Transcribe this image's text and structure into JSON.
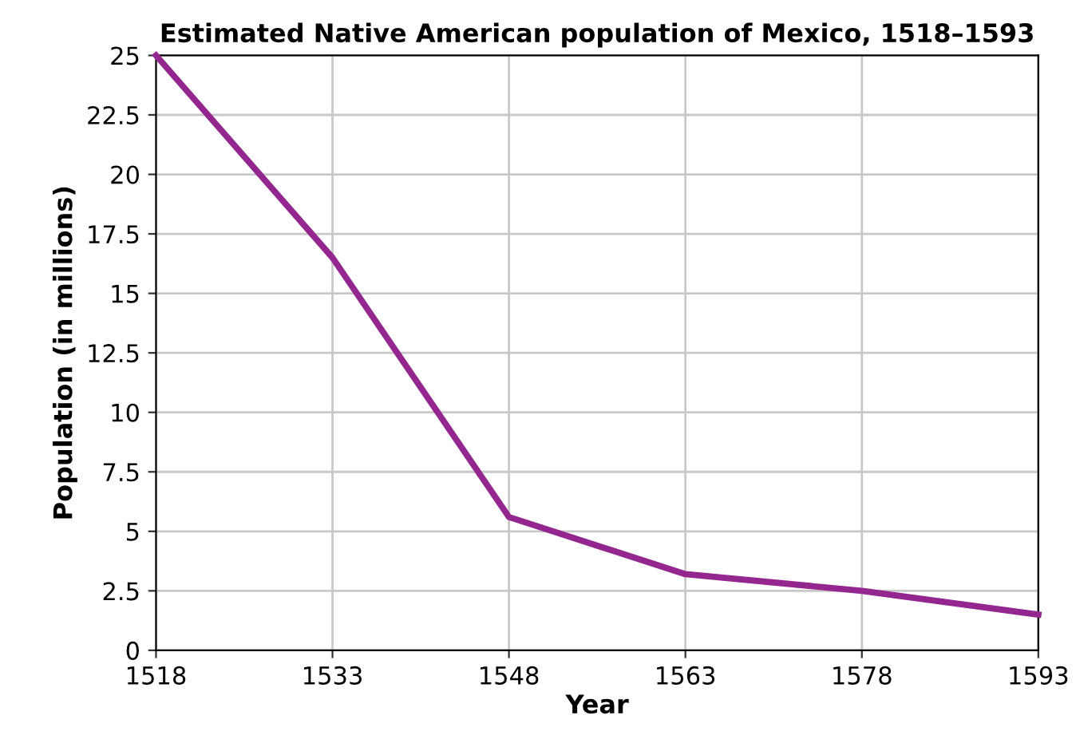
{
  "chart_data": {
    "type": "line",
    "title": "Estimated Native American population of Mexico, 1518–1593",
    "xlabel": "Year",
    "ylabel": "Population (in millions)",
    "x": [
      1518,
      1533,
      1548,
      1563,
      1578,
      1593
    ],
    "series": [
      {
        "color": "#93278f",
        "values": [
          25,
          16.5,
          5.6,
          3.2,
          2.5,
          1.5
        ]
      }
    ],
    "xlim": [
      1518,
      1593
    ],
    "xticks": [
      1518,
      1533,
      1548,
      1563,
      1578,
      1593
    ],
    "ylim": [
      0,
      25
    ],
    "yticks": [
      0,
      2.5,
      5,
      7.5,
      10,
      12.5,
      15,
      17.5,
      20,
      22.5,
      25
    ],
    "grid": true,
    "marker": "none",
    "line_style": "solid"
  }
}
